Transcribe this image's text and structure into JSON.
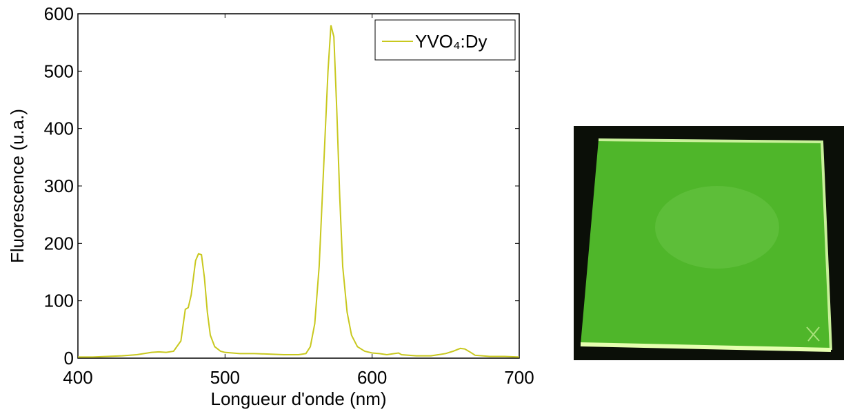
{
  "chart_data": {
    "type": "line",
    "xlabel": "Longueur d'onde (nm)",
    "ylabel": "Fluorescence (u.a.)",
    "xlim": [
      400,
      700
    ],
    "xticks": [
      400,
      500,
      600,
      700
    ],
    "ylim": [
      0,
      600
    ],
    "yticks": [
      0,
      100,
      200,
      300,
      400,
      500,
      600
    ],
    "legend": "upper right",
    "series": [
      {
        "name": "YVO₄:Dy",
        "color": "#c8c81e",
        "x": [
          400,
          410,
          420,
          430,
          440,
          450,
          455,
          460,
          465,
          470,
          473,
          475,
          477,
          480,
          482,
          484,
          486,
          488,
          490,
          493,
          497,
          500,
          510,
          520,
          530,
          540,
          550,
          555,
          558,
          561,
          564,
          567,
          570,
          572,
          574,
          576,
          578,
          580,
          583,
          586,
          590,
          595,
          600,
          605,
          610,
          615,
          618,
          620,
          630,
          640,
          650,
          655,
          660,
          663,
          667,
          670,
          680,
          690,
          700
        ],
        "values": [
          2,
          2,
          3,
          4,
          6,
          10,
          11,
          10,
          12,
          30,
          85,
          88,
          110,
          170,
          182,
          180,
          140,
          80,
          40,
          20,
          12,
          10,
          8,
          8,
          7,
          6,
          6,
          8,
          20,
          60,
          160,
          330,
          500,
          580,
          560,
          430,
          280,
          160,
          80,
          40,
          20,
          12,
          9,
          8,
          6,
          8,
          9,
          6,
          4,
          4,
          8,
          12,
          17,
          16,
          10,
          5,
          3,
          3,
          2
        ]
      }
    ]
  }
}
